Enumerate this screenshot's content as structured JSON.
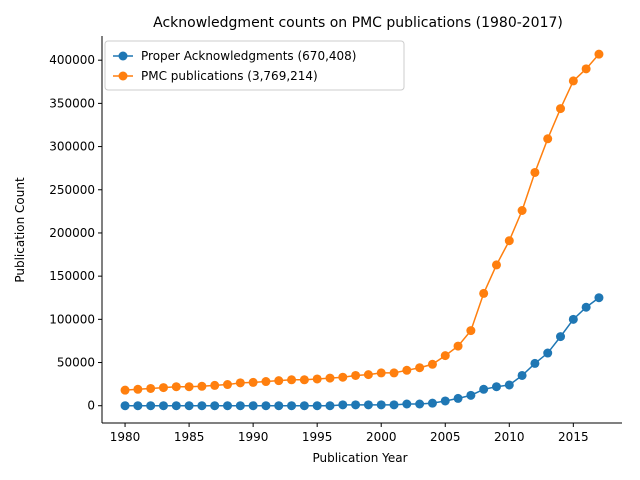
{
  "chart_data": {
    "type": "line",
    "title": "Acknowledgment counts on PMC publications (1980-2017)",
    "xlabel": "Publication Year",
    "ylabel": "Publication Count",
    "xlim": [
      1978.2,
      2018.8
    ],
    "ylim": [
      -20000,
      428000
    ],
    "x_ticks": [
      1980,
      1985,
      1990,
      1995,
      2000,
      2005,
      2010,
      2015
    ],
    "y_ticks": [
      0,
      50000,
      100000,
      150000,
      200000,
      250000,
      300000,
      350000,
      400000
    ],
    "grid": false,
    "legend_position": "top-left",
    "x": [
      1980,
      1981,
      1982,
      1983,
      1984,
      1985,
      1986,
      1987,
      1988,
      1989,
      1990,
      1991,
      1992,
      1993,
      1994,
      1995,
      1996,
      1997,
      1998,
      1999,
      2000,
      2001,
      2002,
      2003,
      2004,
      2005,
      2006,
      2007,
      2008,
      2009,
      2010,
      2011,
      2012,
      2013,
      2014,
      2015,
      2016,
      2017
    ],
    "series": [
      {
        "name": "Proper Acknowledgments (670,408)",
        "color": "#1f77b4",
        "values": [
          0,
          0,
          0,
          0,
          0,
          0,
          0,
          0,
          0,
          0,
          0,
          0,
          0,
          0,
          0,
          0,
          0,
          1000,
          1000,
          1000,
          1000,
          1000,
          2000,
          2000,
          3000,
          5500,
          8500,
          12000,
          19000,
          22000,
          24000,
          35000,
          49000,
          61000,
          80000,
          100000,
          114000,
          125000
        ]
      },
      {
        "name": "PMC publications (3,769,214)",
        "color": "#ff7f0e",
        "values": [
          18000,
          19000,
          20000,
          21000,
          22000,
          22000,
          22500,
          23500,
          24500,
          26500,
          27000,
          28000,
          29000,
          30000,
          30000,
          31000,
          32000,
          33000,
          35000,
          36000,
          38000,
          38000,
          41000,
          44000,
          48000,
          58000,
          69000,
          87000,
          130000,
          163000,
          191000,
          226000,
          270000,
          309000,
          344000,
          376000,
          390000,
          407000
        ]
      }
    ]
  }
}
